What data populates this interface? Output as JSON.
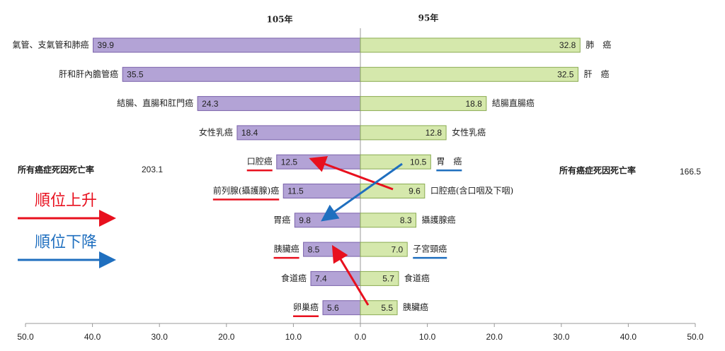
{
  "chart_data": [
    {
      "type": "bar",
      "orientation": "horizontal",
      "title": "105年",
      "categories": [
        "氣管、支氣管和肺癌",
        "肝和肝內膽管癌",
        "結腸、直腸和肛門癌",
        "女性乳癌",
        "口腔癌",
        "前列腺(攝護腺)癌",
        "胃癌",
        "胰臟癌",
        "食道癌",
        "卵巢癌"
      ],
      "values": [
        39.9,
        35.5,
        24.3,
        18.4,
        12.5,
        11.5,
        9.8,
        8.5,
        7.4,
        5.6
      ],
      "color": "#b3a3d6",
      "xlim": [
        50,
        0
      ],
      "xticks": [
        {
          "value": 50,
          "label": "50.0"
        },
        {
          "value": 40,
          "label": "40.0"
        },
        {
          "value": 30,
          "label": "30.0"
        },
        {
          "value": 20,
          "label": "20.0"
        },
        {
          "value": 10,
          "label": "10.0"
        },
        {
          "value": 0,
          "label": "0.0"
        }
      ],
      "total_label": "所有癌症死因死亡率",
      "total": 203.1
    },
    {
      "type": "bar",
      "orientation": "horizontal",
      "title": "95年",
      "categories": [
        "肺　癌",
        "肝　癌",
        "結腸直腸癌",
        "女性乳癌",
        "胃　癌",
        "口腔癌(含口咽及下咽)",
        "攝護腺癌",
        "子宮頸癌",
        "食道癌",
        "胰臟癌"
      ],
      "values": [
        32.8,
        32.5,
        18.8,
        12.8,
        10.5,
        9.6,
        8.3,
        7.0,
        5.7,
        5.5
      ],
      "value_labels": [
        "32.8",
        "32.5",
        "18.8",
        "12.8",
        "10.5",
        "9.6",
        "8.3",
        "7.0",
        "5.7",
        "5.5"
      ],
      "color": "#d5e8ac",
      "xlim": [
        0,
        50
      ],
      "xticks": [
        {
          "value": 10,
          "label": "10.0"
        },
        {
          "value": 20,
          "label": "20.0"
        },
        {
          "value": 30,
          "label": "30.0"
        },
        {
          "value": 40,
          "label": "40.0"
        },
        {
          "value": 50,
          "label": "50.0"
        }
      ],
      "total_label": "所有癌症死因死亡率",
      "total": 166.5
    }
  ],
  "notes": [
    {
      "text": "順位上升",
      "color": "#e8101e"
    },
    {
      "text": "順位下降",
      "color": "#1f6fbf"
    }
  ]
}
